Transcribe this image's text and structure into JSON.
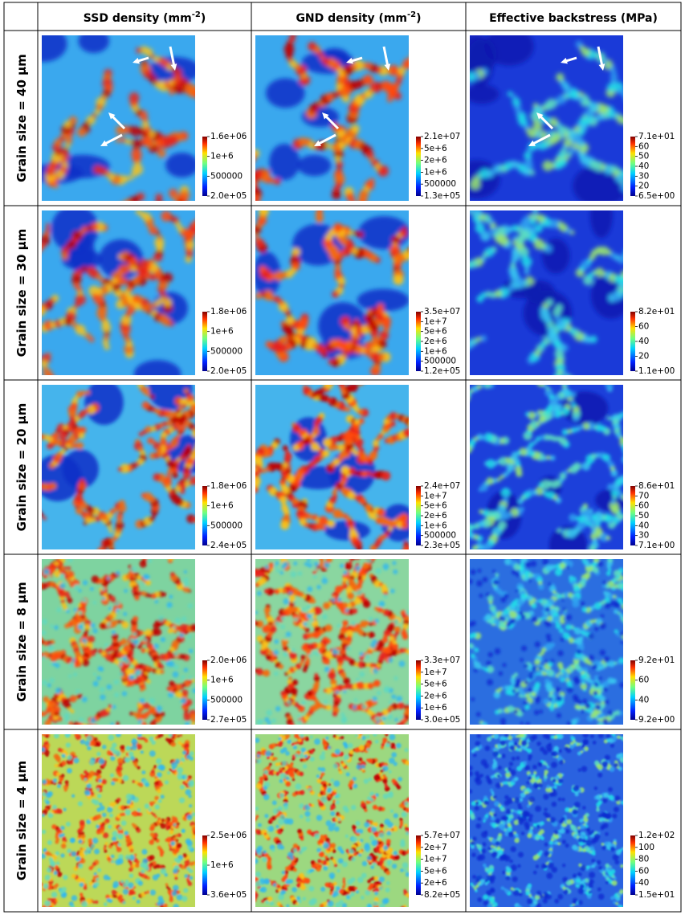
{
  "header": {
    "columns": [
      {
        "text": "SSD density (mm",
        "sup": "-2",
        "suffix": ")"
      },
      {
        "text": "GND density (mm",
        "sup": "-2",
        "suffix": ")"
      },
      {
        "text": "Effective backstress (MPa)"
      }
    ]
  },
  "rows": [
    {
      "label": "Grain size = 40 μm",
      "colorbars": [
        [
          "1.6e+06",
          "1e+6",
          "500000",
          "2.0e+05"
        ],
        [
          "2.1e+07",
          "5e+6",
          "2e+6",
          "1e+6",
          "500000",
          "1.3e+05"
        ],
        [
          "7.1e+01",
          "60",
          "50",
          "40",
          "30",
          "20",
          "6.5e+00"
        ]
      ]
    },
    {
      "label": "Grain size = 30 μm",
      "colorbars": [
        [
          "1.8e+06",
          "1e+6",
          "500000",
          "2.0e+05"
        ],
        [
          "3.5e+07",
          "1e+7",
          "5e+6",
          "2e+6",
          "1e+6",
          "500000",
          "1.2e+05"
        ],
        [
          "8.2e+01",
          "60",
          "40",
          "20",
          "1.1e+00"
        ]
      ]
    },
    {
      "label": "Grain size = 20 μm",
      "colorbars": [
        [
          "1.8e+06",
          "1e+6",
          "500000",
          "2.4e+05"
        ],
        [
          "2.4e+07",
          "1e+7",
          "5e+6",
          "2e+6",
          "1e+6",
          "500000",
          "2.3e+05"
        ],
        [
          "8.6e+01",
          "70",
          "60",
          "50",
          "40",
          "30",
          "7.1e+00"
        ]
      ]
    },
    {
      "label": "Grain size = 8 μm",
      "colorbars": [
        [
          "2.0e+06",
          "1e+6",
          "500000",
          "2.7e+05"
        ],
        [
          "3.3e+07",
          "1e+7",
          "5e+6",
          "2e+6",
          "1e+6",
          "3.0e+05"
        ],
        [
          "9.2e+01",
          "60",
          "40",
          "9.2e+00"
        ]
      ]
    },
    {
      "label": "Grain size = 4 μm",
      "colorbars": [
        [
          "2.5e+06",
          "1e+6",
          "3.6e+05"
        ],
        [
          "5.7e+07",
          "2e+7",
          "1e+7",
          "5e+6",
          "2e+6",
          "8.2e+05"
        ],
        [
          "1.2e+02",
          "100",
          "80",
          "60",
          "40",
          "1.5e+01"
        ]
      ]
    }
  ]
}
